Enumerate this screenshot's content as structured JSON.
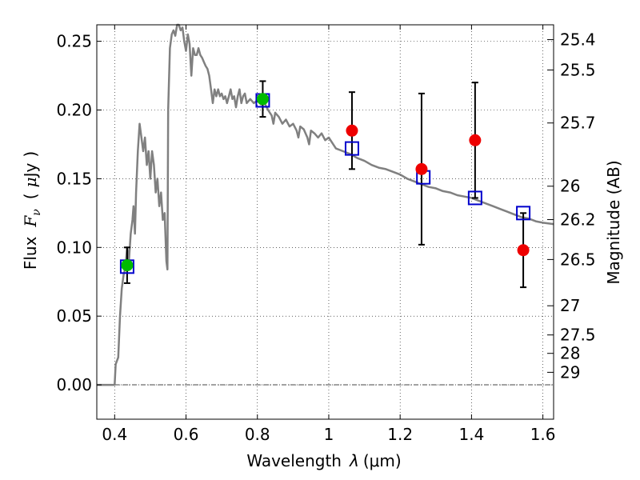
{
  "chart_data": {
    "type": "scatter",
    "xlabel_main": "Wavelength",
    "xlabel_symbol": "λ",
    "xlabel_unit": "(μm)",
    "ylabel_main": "Flux",
    "ylabel_symbol": "F",
    "ylabel_subscript": "ν",
    "ylabel_unit_open": "(",
    "ylabel_unit_mu": "μ",
    "ylabel_unit_rest": "Jy",
    "ylabel_unit_close": ")",
    "y2label": "Magnitude (AB)",
    "xlim": [
      0.35,
      1.63
    ],
    "ylim": [
      -0.025,
      0.262
    ],
    "grid": true,
    "x_ticks": [
      {
        "value": 0.4,
        "label": "0.4"
      },
      {
        "value": 0.6,
        "label": "0.6"
      },
      {
        "value": 0.8,
        "label": "0.8"
      },
      {
        "value": 1.0,
        "label": "1"
      },
      {
        "value": 1.2,
        "label": "1.2"
      },
      {
        "value": 1.4,
        "label": "1.4"
      },
      {
        "value": 1.6,
        "label": "1.6"
      }
    ],
    "y_ticks": [
      {
        "value": 0.0,
        "label": "0.00"
      },
      {
        "value": 0.05,
        "label": "0.05"
      },
      {
        "value": 0.1,
        "label": "0.10"
      },
      {
        "value": 0.15,
        "label": "0.15"
      },
      {
        "value": 0.2,
        "label": "0.20"
      },
      {
        "value": 0.25,
        "label": "0.25"
      }
    ],
    "mag_ticks": [
      {
        "value": 25.4,
        "label": "25.4"
      },
      {
        "value": 25.5,
        "label": "25.5"
      },
      {
        "value": 25.7,
        "label": "25.7"
      },
      {
        "value": 26.0,
        "label": "26"
      },
      {
        "value": 26.2,
        "label": "26.2"
      },
      {
        "value": 26.5,
        "label": "26.5"
      },
      {
        "value": 27.0,
        "label": "27"
      },
      {
        "value": 27.5,
        "label": "27.5"
      },
      {
        "value": 28.0,
        "label": "28"
      },
      {
        "value": 29.0,
        "label": "29"
      }
    ],
    "colors": {
      "sed": "#808080",
      "model": "#0000cc",
      "photometry": "#ee0000",
      "detection": "#00bb00",
      "error": "#000000"
    },
    "sed_curve": [
      [
        0.35,
        0.0
      ],
      [
        0.4,
        0.0
      ],
      [
        0.403,
        0.015
      ],
      [
        0.41,
        0.02
      ],
      [
        0.415,
        0.05
      ],
      [
        0.42,
        0.07
      ],
      [
        0.425,
        0.08
      ],
      [
        0.43,
        0.085
      ],
      [
        0.435,
        0.1
      ],
      [
        0.44,
        0.09
      ],
      [
        0.445,
        0.11
      ],
      [
        0.45,
        0.12
      ],
      [
        0.453,
        0.13
      ],
      [
        0.457,
        0.11
      ],
      [
        0.46,
        0.14
      ],
      [
        0.465,
        0.17
      ],
      [
        0.47,
        0.19
      ],
      [
        0.475,
        0.18
      ],
      [
        0.48,
        0.17
      ],
      [
        0.485,
        0.18
      ],
      [
        0.49,
        0.16
      ],
      [
        0.495,
        0.17
      ],
      [
        0.5,
        0.15
      ],
      [
        0.505,
        0.17
      ],
      [
        0.51,
        0.16
      ],
      [
        0.515,
        0.14
      ],
      [
        0.52,
        0.15
      ],
      [
        0.525,
        0.13
      ],
      [
        0.53,
        0.14
      ],
      [
        0.535,
        0.12
      ],
      [
        0.54,
        0.125
      ],
      [
        0.545,
        0.09
      ],
      [
        0.548,
        0.084
      ],
      [
        0.55,
        0.2
      ],
      [
        0.555,
        0.245
      ],
      [
        0.56,
        0.255
      ],
      [
        0.565,
        0.258
      ],
      [
        0.57,
        0.254
      ],
      [
        0.575,
        0.262
      ],
      [
        0.58,
        0.262
      ],
      [
        0.585,
        0.258
      ],
      [
        0.59,
        0.26
      ],
      [
        0.595,
        0.25
      ],
      [
        0.6,
        0.243
      ],
      [
        0.605,
        0.255
      ],
      [
        0.61,
        0.248
      ],
      [
        0.615,
        0.225
      ],
      [
        0.62,
        0.245
      ],
      [
        0.625,
        0.24
      ],
      [
        0.63,
        0.24
      ],
      [
        0.635,
        0.245
      ],
      [
        0.64,
        0.24
      ],
      [
        0.645,
        0.238
      ],
      [
        0.65,
        0.235
      ],
      [
        0.655,
        0.232
      ],
      [
        0.66,
        0.23
      ],
      [
        0.665,
        0.225
      ],
      [
        0.67,
        0.215
      ],
      [
        0.675,
        0.205
      ],
      [
        0.68,
        0.215
      ],
      [
        0.685,
        0.21
      ],
      [
        0.69,
        0.215
      ],
      [
        0.695,
        0.21
      ],
      [
        0.7,
        0.212
      ],
      [
        0.705,
        0.208
      ],
      [
        0.71,
        0.21
      ],
      [
        0.715,
        0.205
      ],
      [
        0.72,
        0.21
      ],
      [
        0.725,
        0.215
      ],
      [
        0.73,
        0.208
      ],
      [
        0.735,
        0.21
      ],
      [
        0.74,
        0.202
      ],
      [
        0.745,
        0.21
      ],
      [
        0.75,
        0.215
      ],
      [
        0.755,
        0.205
      ],
      [
        0.76,
        0.21
      ],
      [
        0.765,
        0.212
      ],
      [
        0.77,
        0.205
      ],
      [
        0.78,
        0.208
      ],
      [
        0.79,
        0.205
      ],
      [
        0.8,
        0.207
      ],
      [
        0.81,
        0.204
      ],
      [
        0.82,
        0.205
      ],
      [
        0.83,
        0.2
      ],
      [
        0.84,
        0.196
      ],
      [
        0.845,
        0.19
      ],
      [
        0.85,
        0.198
      ],
      [
        0.86,
        0.195
      ],
      [
        0.87,
        0.19
      ],
      [
        0.88,
        0.193
      ],
      [
        0.89,
        0.188
      ],
      [
        0.9,
        0.19
      ],
      [
        0.91,
        0.185
      ],
      [
        0.915,
        0.18
      ],
      [
        0.92,
        0.188
      ],
      [
        0.93,
        0.186
      ],
      [
        0.94,
        0.18
      ],
      [
        0.945,
        0.175
      ],
      [
        0.95,
        0.185
      ],
      [
        0.96,
        0.183
      ],
      [
        0.97,
        0.18
      ],
      [
        0.98,
        0.183
      ],
      [
        0.99,
        0.178
      ],
      [
        1.0,
        0.18
      ],
      [
        1.01,
        0.176
      ],
      [
        1.02,
        0.172
      ],
      [
        1.04,
        0.17
      ],
      [
        1.06,
        0.168
      ],
      [
        1.08,
        0.165
      ],
      [
        1.1,
        0.163
      ],
      [
        1.12,
        0.16
      ],
      [
        1.14,
        0.158
      ],
      [
        1.16,
        0.157
      ],
      [
        1.18,
        0.155
      ],
      [
        1.2,
        0.153
      ],
      [
        1.22,
        0.15
      ],
      [
        1.24,
        0.148
      ],
      [
        1.26,
        0.146
      ],
      [
        1.28,
        0.144
      ],
      [
        1.3,
        0.143
      ],
      [
        1.32,
        0.141
      ],
      [
        1.34,
        0.14
      ],
      [
        1.36,
        0.138
      ],
      [
        1.38,
        0.137
      ],
      [
        1.4,
        0.136
      ],
      [
        1.42,
        0.134
      ],
      [
        1.44,
        0.132
      ],
      [
        1.46,
        0.13
      ],
      [
        1.48,
        0.128
      ],
      [
        1.5,
        0.126
      ],
      [
        1.52,
        0.124
      ],
      [
        1.54,
        0.122
      ],
      [
        1.56,
        0.121
      ],
      [
        1.58,
        0.119
      ],
      [
        1.6,
        0.118
      ],
      [
        1.63,
        0.117
      ]
    ],
    "model_points": [
      {
        "x": 0.435,
        "y": 0.086
      },
      {
        "x": 0.815,
        "y": 0.207
      },
      {
        "x": 1.065,
        "y": 0.172
      },
      {
        "x": 1.265,
        "y": 0.151
      },
      {
        "x": 1.41,
        "y": 0.136
      },
      {
        "x": 1.545,
        "y": 0.125
      }
    ],
    "detections": [
      {
        "x": 0.435,
        "y": 0.087,
        "err": 0.013
      },
      {
        "x": 0.815,
        "y": 0.208,
        "err": 0.013
      }
    ],
    "photometry": [
      {
        "x": 1.065,
        "y": 0.185,
        "err": 0.028
      },
      {
        "x": 1.26,
        "y": 0.157,
        "err": 0.055
      },
      {
        "x": 1.41,
        "y": 0.178,
        "err": 0.042
      },
      {
        "x": 1.545,
        "y": 0.098,
        "err": 0.027
      }
    ]
  }
}
